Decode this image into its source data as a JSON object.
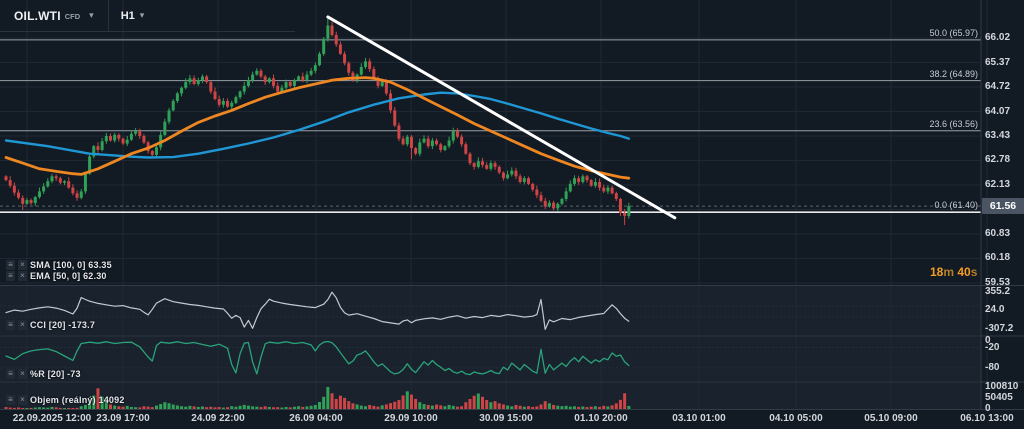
{
  "toolbar": {
    "symbol": "OIL.WTI",
    "instrument_type": "CFD",
    "timeframe": "H1"
  },
  "countdown": {
    "min_value": "18",
    "min_unit": "m",
    "sec_value": "40",
    "sec_unit": "s"
  },
  "legend": {
    "sma": "SMA [100, 0] 63.35",
    "ema": "EMA [50, 0] 62.30",
    "cci": "CCI [20] -173.7",
    "wr": "%R [20] -73",
    "volume": "Objem  (reálný)  14092"
  },
  "price_axis": {
    "ticks": [
      "66.02",
      "65.37",
      "64.72",
      "64.07",
      "63.43",
      "62.78",
      "62.13",
      "60.83",
      "60.18",
      "59.53"
    ],
    "tick_prices": [
      66.02,
      65.37,
      64.72,
      64.07,
      63.43,
      62.78,
      62.13,
      60.83,
      60.18,
      59.53
    ],
    "current_label": "61.56",
    "current_price": 61.56
  },
  "indicator_axes": {
    "cci": [
      {
        "label": "355.2",
        "value": 355.2
      },
      {
        "label": "24.0",
        "value": 24.0
      },
      {
        "label": "-307.2",
        "value": -307.2
      }
    ],
    "wr": [
      {
        "label": "0",
        "value": 0
      },
      {
        "label": "-20",
        "value": -20
      },
      {
        "label": "-80",
        "value": -80
      }
    ],
    "volume": [
      {
        "label": "100810",
        "value": 100810
      },
      {
        "label": "50405",
        "value": 50405
      },
      {
        "label": "0",
        "value": 0
      }
    ]
  },
  "time_axis": {
    "labels": [
      "22.09.2025 12:00",
      "23.09 17:00",
      "24.09 22:00",
      "26.09 04:00",
      "29.09 10:00",
      "30.09 15:00",
      "01.10 20:00",
      "03.10 01:00",
      "04.10 05:00",
      "05.10 09:00",
      "06.10 13:00"
    ]
  },
  "colors": {
    "background": "#121a23",
    "pane_background": "#1a222d",
    "grid": "#1e2835",
    "separator": "#323b47",
    "candle_up": "#30a257",
    "candle_down": "#cf4545",
    "sma": "#1f97d4",
    "ema": "#ee8722",
    "trendline": "#ffffff",
    "fib_line": "#9aa0a8",
    "fib_zero_line": "#e8eaec",
    "current_price_line": "#5a6573",
    "cci_line": "#c4c9d1",
    "wr_line": "#2aa37a",
    "axis_text": "#d4d7dc",
    "countdown": "#f59d23"
  },
  "chart_data": {
    "type": "candlestick",
    "title": "OIL.WTI CFD H1",
    "price_range_top": 66.02,
    "price_tick_step": 0.65,
    "fib_levels": [
      {
        "label": "50.0 (65.97)",
        "price": 65.97,
        "is_zero": false
      },
      {
        "label": "38.2 (64.89)",
        "price": 64.89,
        "is_zero": false
      },
      {
        "label": "23.6 (63.56)",
        "price": 63.56,
        "is_zero": false
      },
      {
        "label": "0.0 (61.40)",
        "price": 61.4,
        "is_zero": true
      }
    ],
    "first_open": 62.35,
    "closes": [
      62.25,
      62.1,
      61.92,
      61.78,
      61.62,
      61.72,
      61.64,
      61.8,
      61.95,
      62.08,
      62.22,
      62.35,
      62.3,
      62.18,
      62.22,
      62.05,
      61.9,
      61.78,
      61.95,
      62.42,
      62.88,
      63.15,
      63.05,
      63.28,
      63.42,
      63.3,
      63.45,
      63.35,
      63.22,
      63.32,
      63.48,
      63.55,
      63.42,
      63.25,
      63.02,
      62.92,
      63.12,
      63.45,
      63.8,
      64.1,
      64.35,
      64.55,
      64.7,
      64.85,
      64.95,
      64.8,
      64.9,
      65.0,
      64.85,
      64.6,
      64.4,
      64.25,
      64.35,
      64.2,
      64.3,
      64.45,
      64.6,
      64.75,
      64.9,
      65.05,
      65.15,
      65.0,
      64.85,
      64.95,
      64.75,
      64.6,
      64.7,
      64.85,
      64.75,
      64.9,
      65.0,
      64.9,
      65.05,
      65.15,
      65.3,
      65.6,
      66.0,
      66.35,
      66.1,
      65.85,
      65.6,
      65.35,
      65.1,
      64.9,
      65.05,
      65.25,
      65.4,
      65.2,
      64.95,
      64.75,
      64.9,
      64.55,
      64.1,
      63.7,
      63.35,
      63.2,
      63.4,
      63.1,
      62.95,
      63.25,
      63.35,
      63.15,
      63.3,
      63.2,
      63.05,
      63.15,
      63.3,
      63.55,
      63.4,
      63.2,
      62.95,
      62.7,
      62.6,
      62.75,
      62.65,
      62.55,
      62.7,
      62.6,
      62.45,
      62.3,
      62.4,
      62.5,
      62.35,
      62.2,
      62.3,
      62.15,
      62.0,
      61.85,
      61.7,
      61.55,
      61.65,
      61.5,
      61.62,
      61.75,
      61.95,
      62.15,
      62.3,
      62.2,
      62.35,
      62.25,
      62.1,
      62.2,
      62.05,
      61.95,
      62.05,
      61.9,
      61.75,
      61.38,
      61.3,
      61.56
    ],
    "wick_overrides": {
      "77": {
        "up": 0.22
      },
      "97": {
        "down": 0.22
      },
      "4": {
        "down": 0.1
      },
      "148": {
        "down": 0.2
      }
    },
    "volumes": [
      9000,
      6500,
      5200,
      7100,
      4300,
      3600,
      5100,
      6600,
      8200,
      7300,
      6200,
      9400,
      7600,
      5100,
      4600,
      4100,
      3700,
      5200,
      12500,
      18500,
      29000,
      62000,
      95000,
      56000,
      31000,
      21000,
      15500,
      12300,
      10400,
      14200,
      9300,
      8200,
      7400,
      12600,
      10800,
      8600,
      15800,
      23000,
      31000,
      26500,
      20500,
      16200,
      12800,
      10600,
      14400,
      12200,
      9600,
      11400,
      8500,
      10200,
      7600,
      9100,
      6400,
      8300,
      12700,
      10300,
      14600,
      18800,
      15400,
      12100,
      10700,
      8700,
      12400,
      9500,
      7800,
      8400,
      6700,
      9200,
      7500,
      10400,
      12900,
      9800,
      11600,
      14800,
      18600,
      32000,
      56000,
      100810,
      72000,
      46000,
      61000,
      51000,
      36000,
      26000,
      21000,
      15600,
      12700,
      18400,
      14300,
      10900,
      16700,
      21000,
      27000,
      33000,
      41000,
      62000,
      81000,
      66000,
      46000,
      31000,
      22500,
      18300,
      15600,
      20400,
      16800,
      12600,
      18900,
      14700,
      10800,
      12600,
      31000,
      46000,
      61000,
      71000,
      56000,
      41000,
      31000,
      36000,
      26000,
      21000,
      15800,
      12400,
      18600,
      14800,
      10600,
      12800,
      9600,
      11800,
      21000,
      36000,
      26000,
      18700,
      15300,
      12900,
      14600,
      10800,
      12300,
      9700,
      11400,
      8800,
      10600,
      12700,
      9800,
      14600,
      11800,
      16800,
      26000,
      42000,
      72000,
      14092
    ],
    "sma_points": [
      [
        0,
        63.3
      ],
      [
        10,
        63.15
      ],
      [
        20,
        62.95
      ],
      [
        30,
        62.87
      ],
      [
        34,
        62.85
      ],
      [
        40,
        62.86
      ],
      [
        46,
        62.95
      ],
      [
        52,
        63.08
      ],
      [
        58,
        63.22
      ],
      [
        64,
        63.38
      ],
      [
        70,
        63.58
      ],
      [
        76,
        63.8
      ],
      [
        82,
        64.05
      ],
      [
        88,
        64.25
      ],
      [
        94,
        64.42
      ],
      [
        100,
        64.52
      ],
      [
        104,
        64.57
      ],
      [
        108,
        64.55
      ],
      [
        112,
        64.48
      ],
      [
        116,
        64.4
      ],
      [
        120,
        64.28
      ],
      [
        124,
        64.15
      ],
      [
        128,
        64.02
      ],
      [
        132,
        63.88
      ],
      [
        136,
        63.75
      ],
      [
        140,
        63.62
      ],
      [
        144,
        63.5
      ],
      [
        147,
        63.42
      ],
      [
        149,
        63.35
      ]
    ],
    "ema_points": [
      [
        0,
        62.85
      ],
      [
        4,
        62.7
      ],
      [
        8,
        62.55
      ],
      [
        12,
        62.48
      ],
      [
        16,
        62.42
      ],
      [
        18,
        62.4
      ],
      [
        22,
        62.55
      ],
      [
        26,
        62.75
      ],
      [
        30,
        62.95
      ],
      [
        34,
        63.1
      ],
      [
        38,
        63.3
      ],
      [
        42,
        63.55
      ],
      [
        46,
        63.78
      ],
      [
        50,
        63.95
      ],
      [
        54,
        64.1
      ],
      [
        58,
        64.28
      ],
      [
        62,
        64.45
      ],
      [
        66,
        64.58
      ],
      [
        70,
        64.7
      ],
      [
        74,
        64.8
      ],
      [
        78,
        64.9
      ],
      [
        82,
        64.95
      ],
      [
        86,
        64.97
      ],
      [
        88,
        64.95
      ],
      [
        92,
        64.85
      ],
      [
        96,
        64.65
      ],
      [
        100,
        64.42
      ],
      [
        104,
        64.2
      ],
      [
        108,
        63.98
      ],
      [
        112,
        63.75
      ],
      [
        116,
        63.55
      ],
      [
        120,
        63.35
      ],
      [
        124,
        63.15
      ],
      [
        128,
        62.95
      ],
      [
        132,
        62.78
      ],
      [
        136,
        62.62
      ],
      [
        140,
        62.5
      ],
      [
        144,
        62.4
      ],
      [
        147,
        62.33
      ],
      [
        149,
        62.3
      ]
    ],
    "trendline": {
      "from_bar": 77,
      "from_price": 66.58,
      "to_bar": 160,
      "to_price": 61.25
    },
    "cci_points": [
      [
        0,
        -20
      ],
      [
        2,
        25
      ],
      [
        4,
        5
      ],
      [
        6,
        40
      ],
      [
        8,
        65
      ],
      [
        10,
        85
      ],
      [
        12,
        60
      ],
      [
        14,
        20
      ],
      [
        16,
        -45
      ],
      [
        17,
        60
      ],
      [
        18,
        250
      ],
      [
        19,
        215
      ],
      [
        20,
        185
      ],
      [
        22,
        145
      ],
      [
        24,
        120
      ],
      [
        26,
        95
      ],
      [
        28,
        105
      ],
      [
        30,
        65
      ],
      [
        32,
        40
      ],
      [
        33,
        -15
      ],
      [
        34,
        -60
      ],
      [
        35,
        40
      ],
      [
        36,
        150
      ],
      [
        38,
        230
      ],
      [
        40,
        175
      ],
      [
        42,
        150
      ],
      [
        44,
        125
      ],
      [
        46,
        110
      ],
      [
        48,
        85
      ],
      [
        50,
        60
      ],
      [
        52,
        45
      ],
      [
        53,
        -30
      ],
      [
        54,
        -120
      ],
      [
        55,
        -70
      ],
      [
        56,
        -110
      ],
      [
        57,
        -280
      ],
      [
        58,
        -160
      ],
      [
        59,
        -300
      ],
      [
        60,
        -110
      ],
      [
        61,
        50
      ],
      [
        62,
        130
      ],
      [
        63,
        220
      ],
      [
        64,
        185
      ],
      [
        66,
        150
      ],
      [
        68,
        125
      ],
      [
        70,
        105
      ],
      [
        72,
        85
      ],
      [
        74,
        70
      ],
      [
        76,
        130
      ],
      [
        77,
        215
      ],
      [
        78,
        345
      ],
      [
        79,
        245
      ],
      [
        80,
        75
      ],
      [
        81,
        -25
      ],
      [
        82,
        -65
      ],
      [
        84,
        -40
      ],
      [
        86,
        -85
      ],
      [
        88,
        -125
      ],
      [
        90,
        -180
      ],
      [
        92,
        -205
      ],
      [
        94,
        -225
      ],
      [
        95,
        -170
      ],
      [
        96,
        -150
      ],
      [
        97,
        -200
      ],
      [
        98,
        -160
      ],
      [
        100,
        -130
      ],
      [
        102,
        -115
      ],
      [
        104,
        -140
      ],
      [
        106,
        -100
      ],
      [
        108,
        -75
      ],
      [
        110,
        -120
      ],
      [
        112,
        -90
      ],
      [
        114,
        -110
      ],
      [
        116,
        -70
      ],
      [
        118,
        -90
      ],
      [
        120,
        -55
      ],
      [
        122,
        -75
      ],
      [
        124,
        -100
      ],
      [
        126,
        -85
      ],
      [
        127,
        -55
      ],
      [
        128,
        215
      ],
      [
        129,
        -320
      ],
      [
        130,
        -150
      ],
      [
        131,
        -185
      ],
      [
        133,
        -125
      ],
      [
        135,
        -145
      ],
      [
        137,
        -105
      ],
      [
        139,
        -80
      ],
      [
        141,
        -55
      ],
      [
        143,
        -35
      ],
      [
        145,
        120
      ],
      [
        146,
        55
      ],
      [
        147,
        -40
      ],
      [
        148,
        -120
      ],
      [
        149,
        -173.7
      ]
    ],
    "wr_points": [
      [
        0,
        -45
      ],
      [
        2,
        -55
      ],
      [
        4,
        -38
      ],
      [
        6,
        -30
      ],
      [
        8,
        -26
      ],
      [
        10,
        -24
      ],
      [
        12,
        -32
      ],
      [
        14,
        -45
      ],
      [
        16,
        -58
      ],
      [
        17,
        -30
      ],
      [
        18,
        -8
      ],
      [
        20,
        -4
      ],
      [
        22,
        -7
      ],
      [
        24,
        -3
      ],
      [
        26,
        -8
      ],
      [
        28,
        -5
      ],
      [
        30,
        -4
      ],
      [
        32,
        -18
      ],
      [
        34,
        -48
      ],
      [
        35,
        -60
      ],
      [
        36,
        -14
      ],
      [
        37,
        -4
      ],
      [
        39,
        -7
      ],
      [
        41,
        -3
      ],
      [
        43,
        -8
      ],
      [
        45,
        -5
      ],
      [
        47,
        -11
      ],
      [
        49,
        -16
      ],
      [
        51,
        -10
      ],
      [
        53,
        -22
      ],
      [
        54,
        -70
      ],
      [
        55,
        -95
      ],
      [
        56,
        -38
      ],
      [
        57,
        -7
      ],
      [
        58,
        -5
      ],
      [
        59,
        -62
      ],
      [
        60,
        -98
      ],
      [
        61,
        -48
      ],
      [
        62,
        -9
      ],
      [
        63,
        -4
      ],
      [
        65,
        -7
      ],
      [
        67,
        -3
      ],
      [
        69,
        -8
      ],
      [
        71,
        -5
      ],
      [
        73,
        -12
      ],
      [
        74,
        -30
      ],
      [
        75,
        -12
      ],
      [
        76,
        -4
      ],
      [
        77,
        -2
      ],
      [
        78,
        -6
      ],
      [
        79,
        -18
      ],
      [
        80,
        -35
      ],
      [
        81,
        -52
      ],
      [
        82,
        -68
      ],
      [
        83,
        -60
      ],
      [
        84,
        -42
      ],
      [
        85,
        -38
      ],
      [
        86,
        -30
      ],
      [
        87,
        -45
      ],
      [
        88,
        -62
      ],
      [
        89,
        -75
      ],
      [
        90,
        -68
      ],
      [
        91,
        -80
      ],
      [
        92,
        -92
      ],
      [
        93,
        -98
      ],
      [
        94,
        -95
      ],
      [
        95,
        -85
      ],
      [
        96,
        -68
      ],
      [
        97,
        -84
      ],
      [
        98,
        -94
      ],
      [
        99,
        -78
      ],
      [
        100,
        -62
      ],
      [
        101,
        -72
      ],
      [
        102,
        -58
      ],
      [
        103,
        -70
      ],
      [
        104,
        -78
      ],
      [
        105,
        -88
      ],
      [
        106,
        -82
      ],
      [
        107,
        -92
      ],
      [
        108,
        -96
      ],
      [
        109,
        -90
      ],
      [
        110,
        -98
      ],
      [
        111,
        -100
      ],
      [
        112,
        -92
      ],
      [
        113,
        -96
      ],
      [
        114,
        -98
      ],
      [
        115,
        -94
      ],
      [
        116,
        -88
      ],
      [
        117,
        -95
      ],
      [
        118,
        -97
      ],
      [
        119,
        -78
      ],
      [
        120,
        -86
      ],
      [
        121,
        -66
      ],
      [
        122,
        -76
      ],
      [
        123,
        -86
      ],
      [
        124,
        -70
      ],
      [
        125,
        -80
      ],
      [
        126,
        -90
      ],
      [
        127,
        -96
      ],
      [
        128,
        -25
      ],
      [
        129,
        -96
      ],
      [
        130,
        -70
      ],
      [
        131,
        -86
      ],
      [
        132,
        -76
      ],
      [
        133,
        -66
      ],
      [
        134,
        -76
      ],
      [
        135,
        -60
      ],
      [
        136,
        -50
      ],
      [
        137,
        -62
      ],
      [
        138,
        -46
      ],
      [
        139,
        -56
      ],
      [
        140,
        -66
      ],
      [
        141,
        -56
      ],
      [
        142,
        -62
      ],
      [
        143,
        -52
      ],
      [
        144,
        -56
      ],
      [
        145,
        -36
      ],
      [
        146,
        -46
      ],
      [
        147,
        -42
      ],
      [
        148,
        -62
      ],
      [
        149,
        -73
      ]
    ]
  }
}
